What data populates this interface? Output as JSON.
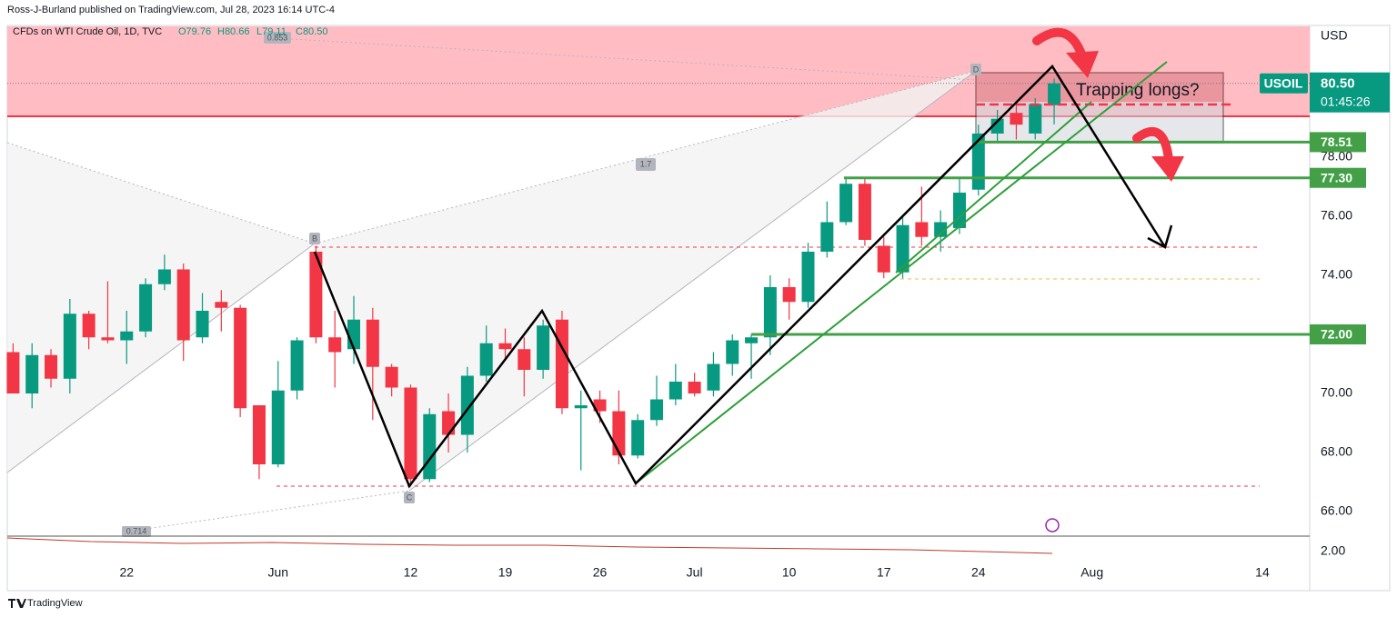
{
  "publisher": "Ross-J-Burland published on TradingView.com, Jul 28, 2023 16:14 UTC-4",
  "footer": "TradingView",
  "chart_data": {
    "type": "candlestick",
    "title": "CFDs on WTI Crude Oil, 1D, TVC",
    "ohlc_legend": [
      "O79.76",
      "H80.66",
      "L79.11",
      "C80.50"
    ],
    "currency": "USD",
    "symbol": "USOIL",
    "last_price": {
      "value": 80.5,
      "label": "80.50"
    },
    "countdown": "01:45:26",
    "annotation": "Trapping longs?",
    "pattern_points": [
      "B",
      "C",
      "D"
    ],
    "fib_ratios": [
      "0.853",
      "1.7",
      "0.714"
    ],
    "indicator_tick_label": "2.00",
    "up_color": "#089981",
    "down_color": "#f23645",
    "level_color": "#43a047",
    "categories": [
      null,
      null,
      null,
      null,
      null,
      null,
      "22",
      null,
      null,
      null,
      null,
      null,
      null,
      null,
      "Jun",
      null,
      null,
      null,
      null,
      null,
      null,
      "12",
      null,
      null,
      null,
      null,
      "19",
      null,
      null,
      null,
      null,
      "26",
      null,
      null,
      null,
      null,
      "Jul",
      null,
      null,
      null,
      null,
      "10",
      null,
      null,
      null,
      null,
      "17",
      null,
      null,
      null,
      null,
      "24",
      null,
      null,
      null,
      null,
      null,
      "Aug",
      null,
      null,
      null,
      null,
      null,
      null,
      null,
      null,
      "14",
      null,
      null
    ],
    "open": [
      71.4,
      70.0,
      71.3,
      70.5,
      72.7,
      71.9,
      71.8,
      72.1,
      73.7,
      74.2,
      71.9,
      73.1,
      72.9,
      69.6,
      67.6,
      70.1,
      74.8,
      71.9,
      71.5,
      72.5,
      70.9,
      70.2,
      67.1,
      69.4,
      68.6,
      70.6,
      71.7,
      71.5,
      70.8,
      72.5,
      69.5,
      69.8,
      69.4,
      67.9,
      69.1,
      69.8,
      70.4,
      70.1,
      71.0,
      71.7,
      71.9,
      73.6,
      73.1,
      74.8,
      75.8,
      77.1,
      75.0,
      74.1,
      75.8,
      75.3,
      75.6,
      76.9,
      78.8,
      79.5,
      78.8,
      79.76,
      null,
      null,
      null,
      null,
      null,
      null,
      null,
      null,
      null,
      null,
      null,
      null,
      null
    ],
    "high": [
      71.7,
      71.7,
      71.5,
      73.2,
      72.8,
      73.8,
      72.8,
      73.9,
      74.7,
      74.4,
      73.4,
      73.5,
      73.0,
      69.6,
      71.1,
      71.9,
      75.0,
      72.8,
      73.3,
      72.9,
      71.0,
      70.3,
      69.5,
      70.0,
      70.9,
      72.3,
      72.2,
      71.9,
      72.5,
      72.8,
      70.1,
      70.1,
      70.1,
      69.3,
      70.6,
      71.0,
      70.7,
      71.4,
      72.0,
      72.0,
      74.0,
      73.9,
      75.1,
      76.5,
      77.3,
      77.3,
      75.3,
      76.0,
      77.0,
      76.2,
      77.3,
      79.1,
      79.6,
      79.9,
      80.0,
      80.66,
      null,
      null,
      null,
      null,
      null,
      null,
      null,
      null,
      null,
      null,
      null,
      null,
      null
    ],
    "low": [
      70.0,
      69.5,
      70.2,
      70.0,
      71.5,
      71.7,
      71.0,
      71.9,
      73.5,
      71.1,
      71.7,
      72.1,
      69.2,
      67.1,
      67.5,
      69.8,
      71.7,
      70.2,
      71.0,
      69.1,
      69.9,
      66.9,
      67.0,
      68.0,
      68.0,
      70.4,
      71.2,
      69.9,
      70.5,
      69.3,
      67.4,
      69.0,
      67.6,
      67.8,
      68.9,
      69.6,
      69.9,
      69.9,
      70.6,
      70.5,
      71.3,
      72.5,
      72.9,
      74.6,
      75.7,
      75.0,
      73.9,
      73.9,
      75.0,
      74.8,
      75.4,
      76.7,
      78.5,
      78.6,
      78.6,
      79.11,
      null,
      null,
      null,
      null,
      null,
      null,
      null,
      null,
      null,
      null,
      null,
      null,
      null
    ],
    "close": [
      70.0,
      71.3,
      70.5,
      72.7,
      71.9,
      71.8,
      72.1,
      73.7,
      74.2,
      71.8,
      72.8,
      72.9,
      69.5,
      67.6,
      70.1,
      71.8,
      71.9,
      71.4,
      72.5,
      70.9,
      70.2,
      67.1,
      69.3,
      68.6,
      70.6,
      71.7,
      71.5,
      70.8,
      72.3,
      69.5,
      69.6,
      69.4,
      67.9,
      69.1,
      69.8,
      70.4,
      70.0,
      71.0,
      71.8,
      71.9,
      73.6,
      73.1,
      74.8,
      75.8,
      77.1,
      75.2,
      74.1,
      75.7,
      75.3,
      75.8,
      76.8,
      78.8,
      79.3,
      79.1,
      79.8,
      80.5,
      null,
      null,
      null,
      null,
      null,
      null,
      null,
      null,
      null,
      null,
      null,
      null,
      null
    ],
    "ylim": [
      65.17,
      82.46
    ],
    "yticks": [
      {
        "value": 66,
        "label": "66.00"
      },
      {
        "value": 68,
        "label": "68.00"
      },
      {
        "value": 70,
        "label": "70.00"
      },
      {
        "value": 74,
        "label": "74.00"
      },
      {
        "value": 76,
        "label": "76.00"
      },
      {
        "value": 78,
        "label": "78.00"
      }
    ],
    "levels": [
      {
        "value": 78.51,
        "label": "78.51"
      },
      {
        "value": 77.3,
        "label": "77.30"
      },
      {
        "value": 72,
        "label": "72.00"
      }
    ]
  }
}
